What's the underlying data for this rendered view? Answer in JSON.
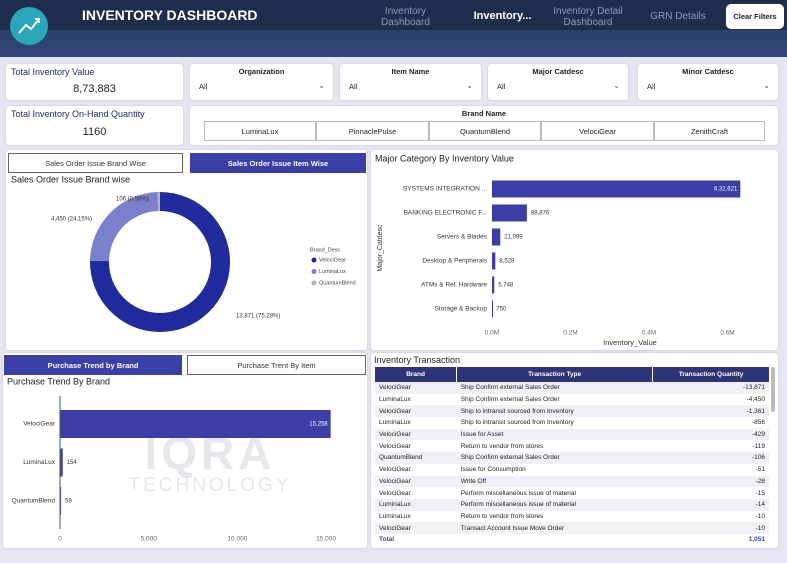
{
  "header": {
    "title": "INVENTORY DASHBOARD",
    "tabs": [
      "Inventory Dashboard",
      "Inventory...",
      "Inventory Detail Dashboard",
      "GRN Details"
    ],
    "clear_filters": "Clear Filters"
  },
  "kpis": [
    {
      "label": "Total Inventory Value",
      "value": "8,73,883"
    },
    {
      "label": "Total Inventory On-Hand Quantity",
      "value": "1160"
    }
  ],
  "filters": [
    {
      "label": "Organization",
      "value": "All"
    },
    {
      "label": "Item Name",
      "value": "All"
    },
    {
      "label": "Major Catdesc",
      "value": "All"
    },
    {
      "label": "Minor Catdesc",
      "value": "All"
    }
  ],
  "brand_filter": {
    "label": "Brand Name",
    "options": [
      "LuminaLux",
      "PinnaclePulse",
      "QuantumBlend",
      "VelociGear",
      "ZenithCraft"
    ]
  },
  "sales_toggle": [
    "Sales Order Issue Brand Wise",
    "Sales Order Issue Item Wise"
  ],
  "donut_chart": {
    "type": "donut",
    "title": "Sales Order Issue Brand wise",
    "legend_title": "Brand_Desc",
    "categories": [
      "VelociGear",
      "LuminaLux",
      "QuantumBlend"
    ],
    "values": [
      13871,
      4450,
      106
    ],
    "value_labels": [
      "13,871 (75.28%)",
      "4,450 (24.15%)",
      "106 (0.58%)"
    ],
    "colors": [
      "#1f2a9c",
      "#7b80cc",
      "#b4b4b8"
    ]
  },
  "category_chart": {
    "type": "bar",
    "title": "Major Category By Inventory Value",
    "x_label": "Inventory_Value",
    "y_label": "Major_Catdesc",
    "categories": [
      "SYSTEMS INTEGRATION ...",
      "BANKING ELECTRONIC F...",
      "Servers & Blades",
      "Desktop & Peripherals",
      "ATMs & Rel. Hardware",
      "Storage & Backup"
    ],
    "values": [
      632621,
      88876,
      21099,
      8528,
      5748,
      750
    ],
    "value_labels": [
      "6,32,621",
      "88,876",
      "21,099",
      "8,528",
      "5,748",
      "750"
    ],
    "color": "#3a3ea6",
    "xlim": [
      0,
      700000
    ],
    "xticks": [
      {
        "value": 0,
        "label": "0.0M"
      },
      {
        "value": 200000,
        "label": "0.2M"
      },
      {
        "value": 400000,
        "label": "0.4M"
      },
      {
        "value": 600000,
        "label": "0.6M"
      }
    ]
  },
  "purchase_toggle": [
    "Purchase Trend by Brand",
    "Purchase Trent By Item"
  ],
  "purchase_chart": {
    "type": "bar",
    "title": "Purchase Trend By Brand",
    "categories": [
      "VelociGear",
      "LuminaLux",
      "QuantumBlend"
    ],
    "values": [
      15258,
      154,
      59
    ],
    "value_labels": [
      "15,258",
      "154",
      "59"
    ],
    "color": "#3a3ea6",
    "xlim": [
      0,
      16000
    ],
    "xticks": [
      0,
      {
        "value": 5000,
        "label": "5,000"
      },
      {
        "value": 10000,
        "label": "10,000"
      },
      {
        "value": 15000,
        "label": "15,000"
      }
    ]
  },
  "watermark": {
    "name": "IQRA",
    "sub": "TECHNOLOGY"
  },
  "table": {
    "title": "Inventory Transaction",
    "columns": [
      "Brand",
      "Transaction Type",
      "Transaction Quantity"
    ],
    "rows": [
      [
        "VelociGear",
        "Ship Confirm external Sales Order",
        "-13,871"
      ],
      [
        "LuminaLux",
        "Ship Confirm external Sales Order",
        "-4,450"
      ],
      [
        "VelociGear",
        "Ship to intransit sourced from Inventory",
        "-1,361"
      ],
      [
        "LuminaLux",
        "Ship to intransit sourced from Inventory",
        "-856"
      ],
      [
        "VelociGear",
        "Issue for Asset",
        "-429"
      ],
      [
        "VelociGear",
        "Return to vendor from stores",
        "-119"
      ],
      [
        "QuantumBlend",
        "Ship Confirm external Sales Order",
        "-106"
      ],
      [
        "VelociGear",
        "Issue for Consumption",
        "-51"
      ],
      [
        "VelociGear",
        "Write Off",
        "-28"
      ],
      [
        "VelociGear",
        "Perform miscellaneous issue of material",
        "-15"
      ],
      [
        "LuminaLux",
        "Perform miscellaneous issue of material",
        "-14"
      ],
      [
        "LuminaLux",
        "Return to vendor from stores",
        "-10"
      ],
      [
        "VelociGear",
        "Transact Account Issue Move Order",
        "-10"
      ]
    ],
    "total": [
      "Total",
      "1,051"
    ]
  }
}
